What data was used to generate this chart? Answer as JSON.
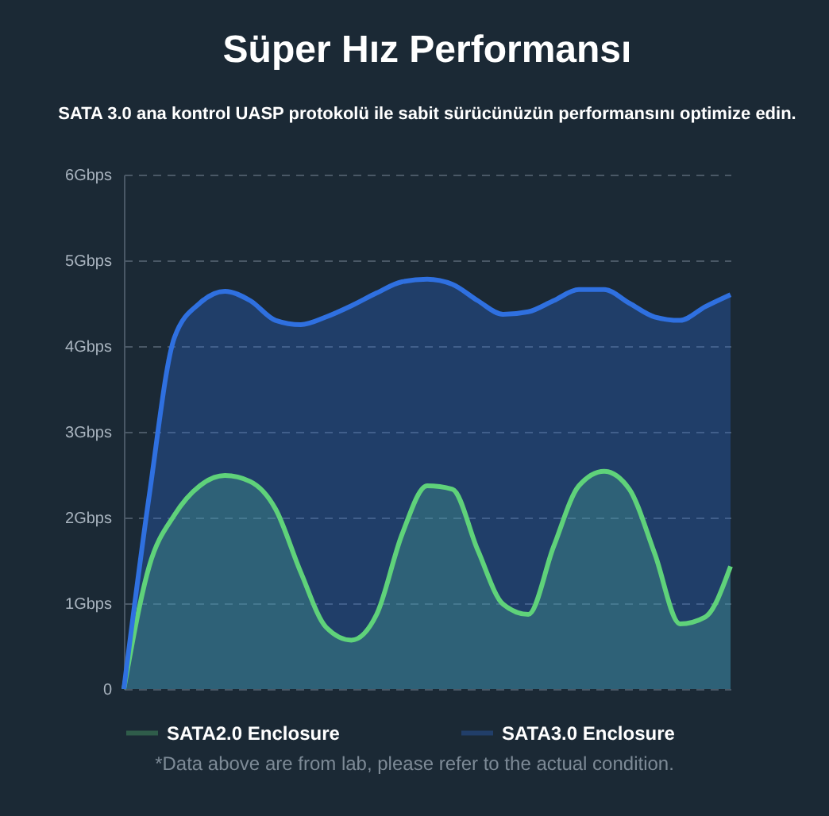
{
  "chart_data": {
    "type": "area",
    "title": "Süper Hız Performansı",
    "subtitle": "SATA 3.0 ana kontrol UASP protokolü ile sabit sürücünüzün performansını optimize edin.",
    "categories": [
      null,
      null,
      null,
      null,
      null,
      null,
      null,
      null,
      null,
      null,
      null,
      null,
      null,
      null,
      null,
      null,
      null,
      null,
      null,
      null,
      null,
      null,
      null,
      null,
      null
    ],
    "series": [
      {
        "name": "SATA2.0 Enclosure",
        "color": "#5fd27a",
        "values": [
          0,
          1.43,
          2.03,
          2.37,
          2.49,
          2.42,
          2.1,
          1.36,
          0.72,
          0.57,
          0.87,
          1.8,
          2.37,
          2.33,
          1.62,
          0.99,
          0.87,
          1.66,
          2.37,
          2.54,
          2.33,
          1.58,
          0.76,
          0.84,
          1.43
        ]
      },
      {
        "name": "SATA3.0 Enclosure",
        "color": "#2f70e0",
        "values": [
          0,
          2.25,
          4.1,
          4.5,
          4.64,
          4.53,
          4.3,
          4.25,
          4.34,
          4.47,
          4.62,
          4.75,
          4.78,
          4.72,
          4.53,
          4.37,
          4.4,
          4.53,
          4.66,
          4.66,
          4.5,
          4.34,
          4.3,
          4.46,
          4.6
        ]
      }
    ],
    "ylim": [
      0,
      6
    ],
    "yticks": [
      0,
      {
        "value": 1,
        "label": "1Gbps"
      },
      {
        "value": 2,
        "label": "2Gbps"
      },
      {
        "value": 3,
        "label": "3Gbps"
      },
      {
        "value": 4,
        "label": "4Gbps"
      },
      {
        "value": 5,
        "label": "5Gbps"
      },
      {
        "value": 6,
        "label": "6Gbps"
      }
    ],
    "grid": "y",
    "line_style": "solid",
    "marker": "none",
    "legend": "bottom",
    "annotations": [
      "*Data above are from lab, please refer to the actual condition."
    ]
  }
}
